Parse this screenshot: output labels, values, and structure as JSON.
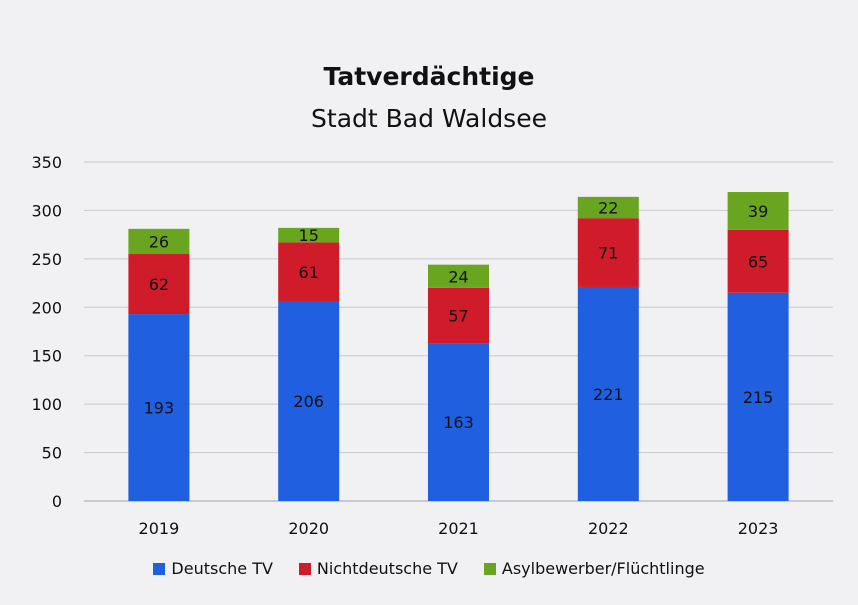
{
  "chart_data": {
    "type": "bar",
    "stacked": true,
    "title": "Tatverdächtige",
    "subtitle": "Stadt Bad Waldsee",
    "categories": [
      "2019",
      "2020",
      "2021",
      "2022",
      "2023"
    ],
    "series": [
      {
        "name": "Deutsche TV",
        "color": "#1f5fe0",
        "values": [
          193,
          206,
          163,
          221,
          215
        ]
      },
      {
        "name": "Nichtdeutsche TV",
        "color": "#d01c2a",
        "values": [
          62,
          61,
          57,
          71,
          65
        ]
      },
      {
        "name": "Asylbewerber/Flüchtlinge",
        "color": "#6aa51f",
        "values": [
          26,
          15,
          24,
          22,
          39
        ]
      }
    ],
    "ylim": [
      0,
      350
    ],
    "yticks": [
      0,
      50,
      100,
      150,
      200,
      250,
      300,
      350
    ],
    "grid": true,
    "legend_position": "bottom"
  }
}
